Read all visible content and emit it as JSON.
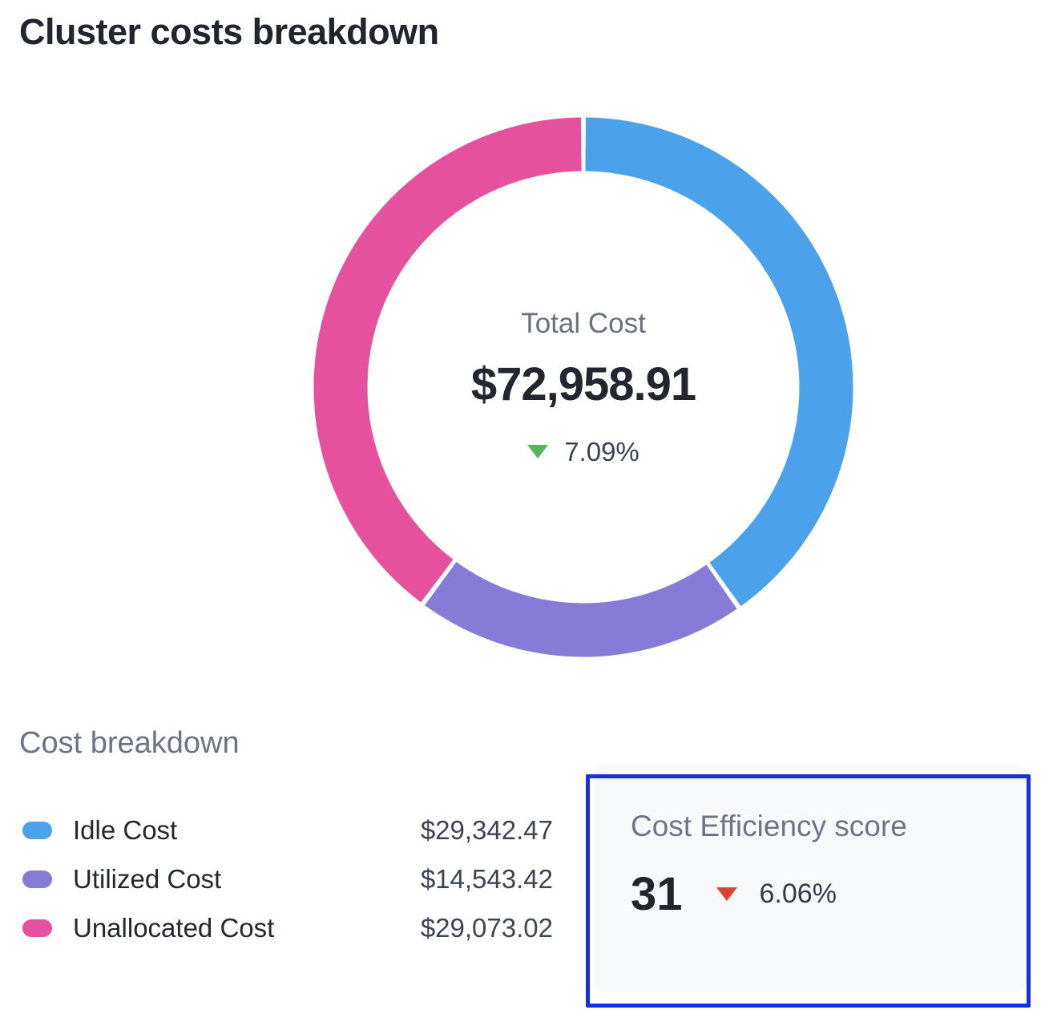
{
  "page": {
    "title": "Cluster costs breakdown"
  },
  "chart_data": {
    "type": "pie",
    "subtype": "donut",
    "title": "Cluster costs breakdown",
    "total": 72958.91,
    "start_angle_deg": 0,
    "direction": "clockwise",
    "center": {
      "label": "Total Cost",
      "value": "$72,958.91",
      "change": "7.09%",
      "change_direction": "down",
      "change_arrow_color": "#56b45d"
    },
    "segments": [
      {
        "name": "Idle Cost",
        "value": 29342.47,
        "display": "$29,342.47",
        "color": "#4ba2eb"
      },
      {
        "name": "Utilized Cost",
        "value": 14543.42,
        "display": "$14,543.42",
        "color": "#867cd8"
      },
      {
        "name": "Unallocated Cost",
        "value": 29073.02,
        "display": "$29,073.02",
        "color": "#e6519e"
      }
    ],
    "legend_position": "bottom-left",
    "grid": false
  },
  "breakdown": {
    "heading": "Cost breakdown"
  },
  "efficiency": {
    "heading": "Cost Efficiency score",
    "score": "31",
    "change": "6.06%",
    "change_direction": "down",
    "change_arrow_color": "#d9432f",
    "highlight_border_color": "#1430e0"
  }
}
